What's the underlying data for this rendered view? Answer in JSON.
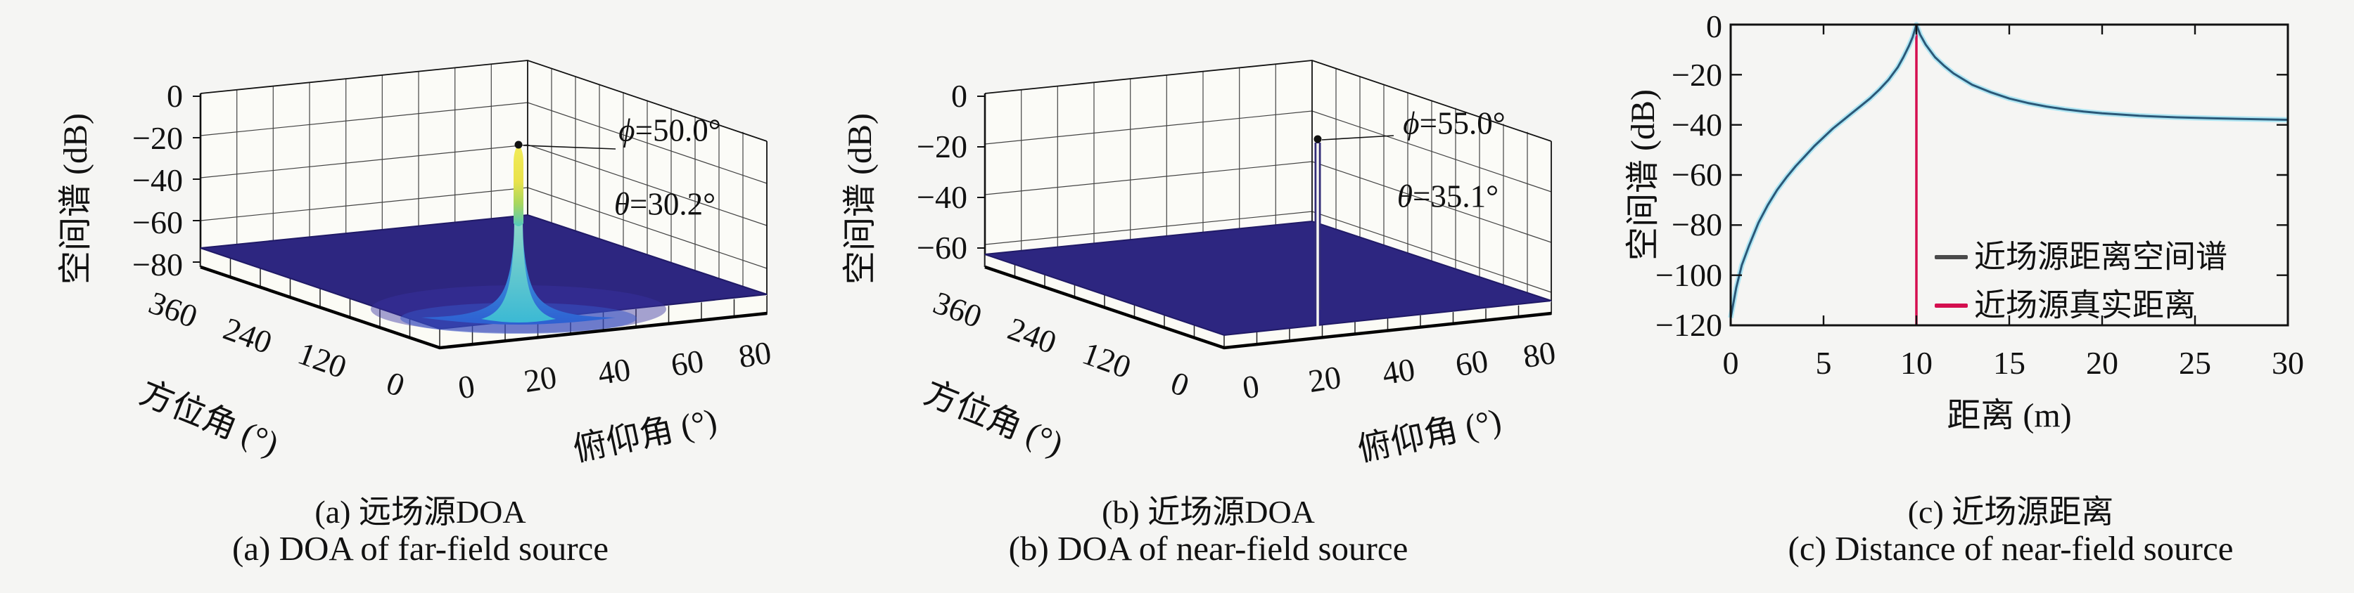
{
  "figure": {
    "background": "#f5f5f3",
    "text_color": "#111111"
  },
  "colors": {
    "surface_navy": "#2d2680",
    "peak_yellow": "#f2ec58",
    "peak_cyan": "#3fc3d0",
    "peak_blue": "#2f6bd6",
    "crimson_line": "#d40f4f",
    "curve_core": "#2a5878",
    "curve_halo": "#9fe2f2",
    "legend_gray": "#4a4a4a"
  },
  "panels": {
    "a": {
      "z_label": "空间谱 (dB)",
      "y_label": "方位角 (°)",
      "x_label": "俯仰角 (°)",
      "z_ticks": [
        "0",
        "−20",
        "−40",
        "−60",
        "−80"
      ],
      "y_ticks": [
        "360",
        "240",
        "120",
        "0"
      ],
      "x_ticks": [
        "0",
        "20",
        "40",
        "60",
        "80"
      ],
      "annotation": {
        "phi_sym": "ϕ",
        "phi_val": "=50.0°",
        "theta_sym": "θ",
        "theta_val": "=30.2°"
      },
      "caption_zh": "(a) 远场源DOA",
      "caption_en": "(a) DOA of far-field source"
    },
    "b": {
      "z_label": "空间谱 (dB)",
      "y_label": "方位角 (°)",
      "x_label": "俯仰角 (°)",
      "z_ticks": [
        "0",
        "−20",
        "−40",
        "−60"
      ],
      "y_ticks": [
        "360",
        "240",
        "120",
        "0"
      ],
      "x_ticks": [
        "0",
        "20",
        "40",
        "60",
        "80"
      ],
      "annotation": {
        "phi_sym": "ϕ",
        "phi_val": "=55.0°",
        "theta_sym": "θ",
        "theta_val": "=35.1°"
      },
      "caption_zh": "(b) 近场源DOA",
      "caption_en": "(b) DOA of near-field source"
    },
    "c": {
      "y_label": "空间谱 (dB)",
      "x_label": "距离 (m)",
      "y_ticks": [
        "0",
        "−20",
        "−40",
        "−60",
        "−80",
        "−100",
        "−120"
      ],
      "x_ticks": [
        "0",
        "5",
        "10",
        "15",
        "20",
        "25",
        "30"
      ],
      "legend": [
        {
          "label": "近场源距离空间谱",
          "color": "#4a4a4a"
        },
        {
          "label": "近场源真实距离",
          "color": "#d40f4f"
        }
      ],
      "caption_zh": "(c) 近场源距离",
      "caption_en": "(c) Distance of near-field source"
    }
  },
  "chart_data": [
    {
      "type": "surface_3d",
      "panel": "a",
      "title": "远场源DOA",
      "xlabel": "俯仰角 (°)",
      "ylabel": "方位角 (°)",
      "zlabel": "空间谱 (dB)",
      "x_ticks": [
        0,
        20,
        40,
        60,
        80
      ],
      "y_ticks": [
        0,
        120,
        240,
        360
      ],
      "z_ticks": [
        0,
        -20,
        -40,
        -60,
        -80
      ],
      "xlim": [
        0,
        90
      ],
      "ylim": [
        0,
        390
      ],
      "zlim": [
        -82,
        0
      ],
      "grid": true,
      "floor_level_db": -73,
      "peak": {
        "elevation_deg": 30.2,
        "azimuth_deg": 50.0,
        "peak_db": 0,
        "shape": "broad skirt, cyan cone, yellow needle, black dot marker at tip"
      },
      "annotation": "ϕ=50.0° θ=30.2°"
    },
    {
      "type": "surface_3d",
      "panel": "b",
      "title": "近场源DOA",
      "xlabel": "俯仰角 (°)",
      "ylabel": "方位角 (°)",
      "zlabel": "空间谱 (dB)",
      "x_ticks": [
        0,
        20,
        40,
        60,
        80
      ],
      "y_ticks": [
        0,
        120,
        240,
        360
      ],
      "z_ticks": [
        0,
        -20,
        -40,
        -60
      ],
      "xlim": [
        0,
        90
      ],
      "ylim": [
        0,
        390
      ],
      "zlim": [
        -68,
        0
      ],
      "grid": true,
      "floor_level_db": -62,
      "peak": {
        "elevation_deg": 35.1,
        "azimuth_deg": 55.0,
        "peak_db": 0,
        "shape": "very thin needle with black dot marker at tip"
      },
      "annotation": "ϕ=55.0° θ=35.1°"
    },
    {
      "type": "line",
      "panel": "c",
      "title": "近场源距离",
      "xlabel": "距离 (m)",
      "ylabel": "空间谱 (dB)",
      "xlim": [
        0,
        30
      ],
      "ylim": [
        -120,
        0
      ],
      "x_ticks": [
        0,
        5,
        10,
        15,
        20,
        25,
        30
      ],
      "y_ticks": [
        0,
        -20,
        -40,
        -60,
        -80,
        -100,
        -120
      ],
      "grid": false,
      "legend_position": "lower right, no frame",
      "series": [
        {
          "name": "近场源距离空间谱",
          "color": "#2a5878",
          "halo": "#9fe2f2",
          "points": [
            [
              0,
              -117
            ],
            [
              0.3,
              -105
            ],
            [
              0.6,
              -96
            ],
            [
              1,
              -88
            ],
            [
              1.5,
              -79
            ],
            [
              2,
              -72
            ],
            [
              2.5,
              -66
            ],
            [
              3,
              -61
            ],
            [
              3.5,
              -56.5
            ],
            [
              4,
              -52.5
            ],
            [
              4.5,
              -48.5
            ],
            [
              5,
              -45
            ],
            [
              5.5,
              -41.5
            ],
            [
              6,
              -38.5
            ],
            [
              6.5,
              -35.5
            ],
            [
              7,
              -32.5
            ],
            [
              7.5,
              -29.5
            ],
            [
              8,
              -26
            ],
            [
              8.5,
              -22
            ],
            [
              9,
              -17
            ],
            [
              9.3,
              -13
            ],
            [
              9.6,
              -8.5
            ],
            [
              9.8,
              -5
            ],
            [
              10,
              0
            ],
            [
              10.2,
              -4
            ],
            [
              10.5,
              -8
            ],
            [
              11,
              -13
            ],
            [
              11.5,
              -16.5
            ],
            [
              12,
              -19.5
            ],
            [
              13,
              -24
            ],
            [
              14,
              -27
            ],
            [
              15,
              -29.5
            ],
            [
              16,
              -31.3
            ],
            [
              17,
              -32.7
            ],
            [
              18,
              -33.8
            ],
            [
              19,
              -34.7
            ],
            [
              20,
              -35.4
            ],
            [
              22,
              -36.4
            ],
            [
              24,
              -37
            ],
            [
              26,
              -37.4
            ],
            [
              28,
              -37.7
            ],
            [
              30,
              -38
            ]
          ]
        },
        {
          "name": "近场源真实距离",
          "type": "vline",
          "color": "#d40f4f",
          "x": 10
        }
      ]
    }
  ]
}
